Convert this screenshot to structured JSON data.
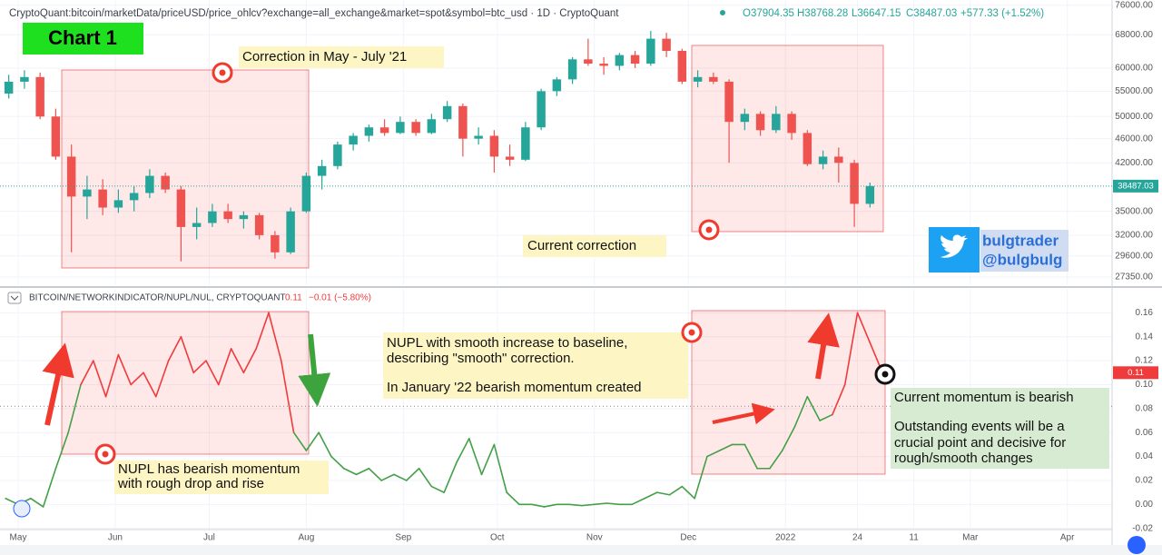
{
  "header": {
    "source": "CryptoQuant:bitcoin/marketData/priceUSD/price_ohlcv?exchange=all_exchange&market=spot&symbol=btc_usd · 1D · CryptoQuant",
    "ohlc": [
      "O37904.35",
      "H38768.28",
      "L36647.15",
      "C38487.03",
      "+577.33 (+1.52%)"
    ],
    "indicator": "BITCOIN/NETWORKINDICATOR/NUPL/NUL, CRYPTOQUANT",
    "indicator_value": "0.11",
    "indicator_change": "−0.01 (−5.80%)"
  },
  "annotations": {
    "chart_label": "Chart 1",
    "correction_past": "Correction in May - July '21",
    "correction_now": "Current correction",
    "handle": [
      "bulgtrader",
      "@bulgbulg"
    ],
    "nupl_note": [
      "NUPL with smooth increase to baseline,",
      "describing \"smooth\" correction.",
      "In January '22 bearish momentum created"
    ],
    "rough_note": [
      "NUPL has bearish momentum",
      "with rough drop and rise"
    ],
    "momentum_note": [
      "Current momentum is bearish",
      "Outstanding events will be a",
      "crucial point and decisive for",
      "rough/smooth changes"
    ]
  },
  "chart_data": [
    {
      "type": "candlestick",
      "log_scale": true,
      "grid": true,
      "color_up": "#26a69a",
      "color_down": "#ef5350",
      "xlim": [
        -5.8,
        349.3
      ],
      "ylim": [
        26600,
        77500
      ],
      "yticks": [
        {
          "value": 76000,
          "label": "76000.00"
        },
        {
          "value": 68000,
          "label": "68000.00"
        },
        {
          "value": 60000,
          "label": "60000.00"
        },
        {
          "value": 55000,
          "label": "55000.00"
        },
        {
          "value": 50000,
          "label": "50000.00"
        },
        {
          "value": 46000,
          "label": "46000.00"
        },
        {
          "value": 42000,
          "label": "42000.00"
        },
        {
          "value": 35000,
          "label": "35000.00"
        },
        {
          "value": 32000,
          "label": "32000.00"
        },
        {
          "value": 29600,
          "label": "29600.00"
        },
        {
          "value": 27350,
          "label": "27350.00"
        }
      ],
      "last_value": 38487.03,
      "x": [
        -3,
        2,
        7,
        12,
        17,
        22,
        27,
        32,
        37,
        42,
        47,
        52,
        57,
        62,
        67,
        72,
        77,
        82,
        87,
        92,
        97,
        102,
        107,
        112,
        117,
        122,
        127,
        132,
        137,
        142,
        147,
        152,
        157,
        162,
        167,
        172,
        177,
        182,
        187,
        192,
        197,
        202,
        207,
        212,
        217,
        222,
        227,
        232,
        237,
        242,
        247,
        252,
        257,
        262,
        267,
        272
      ],
      "open": [
        54500,
        57000,
        58000,
        50000,
        43000,
        37000,
        38000,
        35500,
        36500,
        37500,
        40000,
        38000,
        33000,
        33500,
        35000,
        34000,
        34500,
        32000,
        30000,
        35000,
        40000,
        41500,
        45000,
        46500,
        48000,
        47000,
        49000,
        47000,
        49500,
        52000,
        46000,
        46500,
        43000,
        42500,
        48000,
        55000,
        57500,
        62000,
        61000,
        60500,
        63000,
        61000,
        67000,
        64000,
        57000,
        58000,
        57000,
        49000,
        50500,
        47500,
        50500,
        47000,
        41800,
        43000,
        42000,
        36000
      ],
      "high": [
        58500,
        59500,
        59000,
        51500,
        45000,
        40000,
        39500,
        38000,
        38500,
        41000,
        40500,
        38500,
        35500,
        36000,
        36000,
        35000,
        34800,
        32500,
        35500,
        40500,
        42500,
        45500,
        47000,
        48500,
        49500,
        50000,
        49500,
        50500,
        53000,
        52500,
        48000,
        47500,
        45000,
        49000,
        55500,
        58000,
        62500,
        67000,
        62500,
        63500,
        64000,
        69000,
        68500,
        64500,
        59500,
        59000,
        57500,
        51500,
        51000,
        52000,
        51000,
        47500,
        44000,
        44500,
        42500,
        39000
      ],
      "low": [
        53500,
        55500,
        49500,
        42500,
        30000,
        34000,
        34500,
        34800,
        35000,
        36800,
        37500,
        29000,
        31500,
        33000,
        33500,
        32800,
        31500,
        29300,
        29800,
        34800,
        38000,
        41000,
        44000,
        45500,
        46500,
        46800,
        46500,
        46800,
        49000,
        43000,
        45000,
        40500,
        41500,
        42300,
        47500,
        54000,
        56500,
        60500,
        58500,
        59500,
        60000,
        60500,
        62500,
        56500,
        55800,
        56500,
        42000,
        47500,
        46500,
        47000,
        45800,
        41500,
        41000,
        39000,
        33000,
        35500
      ],
      "close": [
        57000,
        58000,
        50000,
        43000,
        37000,
        38000,
        35500,
        36500,
        37500,
        40000,
        38000,
        33000,
        33500,
        35000,
        34000,
        34500,
        32000,
        30000,
        35000,
        40000,
        41500,
        45000,
        46500,
        48000,
        47000,
        49000,
        47000,
        49500,
        52000,
        46000,
        46500,
        43000,
        42500,
        48000,
        55000,
        57500,
        62000,
        61000,
        60500,
        63000,
        61000,
        67000,
        64000,
        57000,
        58000,
        57000,
        49000,
        50500,
        47500,
        50500,
        47000,
        41800,
        43000,
        42000,
        36000,
        38487.03
      ]
    },
    {
      "type": "line",
      "grid": true,
      "color_above": "#ef3b3b",
      "color_below": "#43a047",
      "baseline": 0.082,
      "xlim": [
        -5.8,
        349.3
      ],
      "ylim": [
        -0.021,
        0.18
      ],
      "xticks": [
        {
          "value": 0,
          "label": "May"
        },
        {
          "value": 31,
          "label": "Jun"
        },
        {
          "value": 61,
          "label": "Jul"
        },
        {
          "value": 92,
          "label": "Aug"
        },
        {
          "value": 123,
          "label": "Sep"
        },
        {
          "value": 153,
          "label": "Oct"
        },
        {
          "value": 184,
          "label": "Nov"
        },
        {
          "value": 214,
          "label": "Dec"
        },
        {
          "value": 245,
          "label": "2022"
        },
        {
          "value": 268,
          "label": "24"
        },
        {
          "value": 286,
          "label": "11"
        },
        {
          "value": 304,
          "label": "Mar"
        },
        {
          "value": 335,
          "label": "Apr"
        }
      ],
      "yticks": [
        0.16,
        0.14,
        0.12,
        {
          "value": 0.1,
          "label": "0.10"
        },
        0.08,
        0.06,
        0.04,
        0.02,
        {
          "value": 0,
          "label": "0.00"
        },
        -0.02
      ],
      "last_value": 0.11,
      "x": [
        -4,
        0,
        4,
        8,
        12,
        16,
        20,
        24,
        28,
        32,
        36,
        40,
        44,
        48,
        52,
        56,
        60,
        64,
        68,
        72,
        76,
        80,
        84,
        88,
        92,
        96,
        100,
        104,
        108,
        112,
        116,
        120,
        124,
        128,
        132,
        136,
        140,
        144,
        148,
        152,
        156,
        160,
        164,
        168,
        172,
        176,
        180,
        184,
        188,
        192,
        196,
        200,
        204,
        208,
        212,
        216,
        220,
        224,
        228,
        232,
        236,
        240,
        244,
        248,
        252,
        256,
        260,
        264,
        268,
        272,
        276
      ],
      "values": [
        0.005,
        0.0,
        0.005,
        -0.002,
        0.03,
        0.06,
        0.1,
        0.12,
        0.09,
        0.125,
        0.1,
        0.11,
        0.09,
        0.12,
        0.14,
        0.11,
        0.12,
        0.1,
        0.13,
        0.11,
        0.13,
        0.16,
        0.12,
        0.06,
        0.045,
        0.06,
        0.04,
        0.03,
        0.025,
        0.03,
        0.02,
        0.025,
        0.02,
        0.03,
        0.015,
        0.01,
        0.035,
        0.055,
        0.025,
        0.05,
        0.01,
        0.0,
        0.0,
        -0.002,
        0.0,
        0.0,
        -0.001,
        0.0,
        0.001,
        0.0,
        0.0,
        0.005,
        0.01,
        0.008,
        0.015,
        0.005,
        0.04,
        0.045,
        0.05,
        0.05,
        0.03,
        0.03,
        0.045,
        0.065,
        0.09,
        0.07,
        0.075,
        0.1,
        0.16,
        0.135,
        0.11
      ]
    }
  ]
}
